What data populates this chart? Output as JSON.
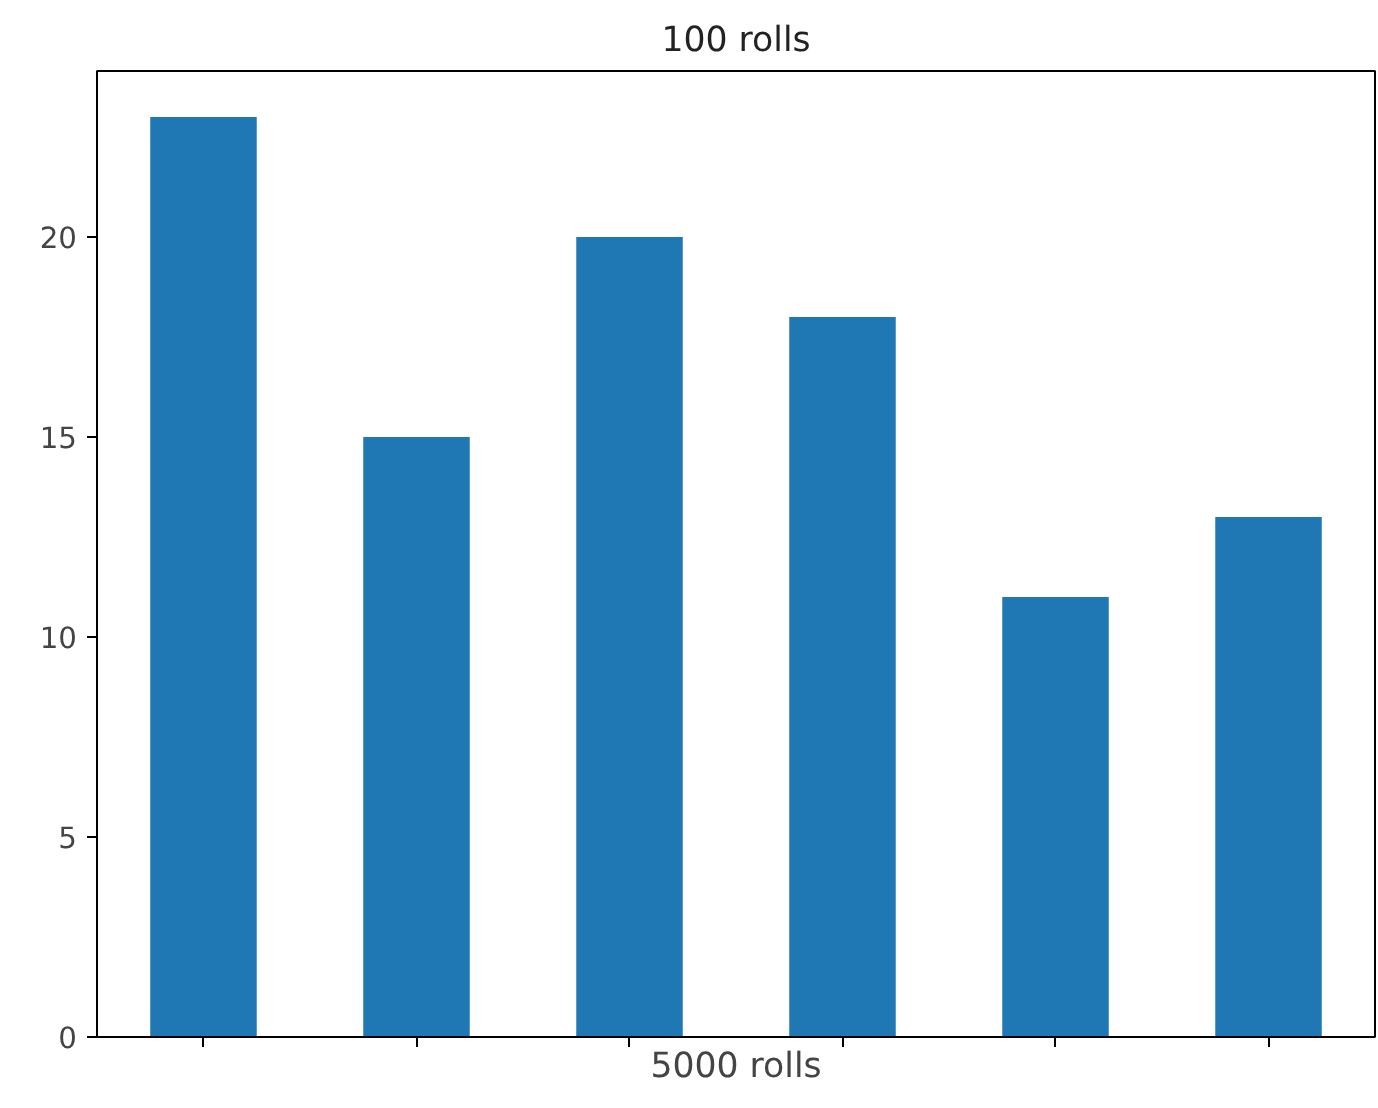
{
  "chart_data": {
    "type": "bar",
    "title": "100 rolls",
    "xlabel": "5000 rolls",
    "categories": [
      null,
      null,
      null,
      null,
      null,
      null
    ],
    "values": [
      23,
      15,
      20,
      18,
      11,
      13
    ],
    "color": "#1f77b4",
    "ylim": [
      0,
      24.15
    ],
    "yticks": [
      0,
      5,
      10,
      15,
      20
    ],
    "grid": false
  }
}
